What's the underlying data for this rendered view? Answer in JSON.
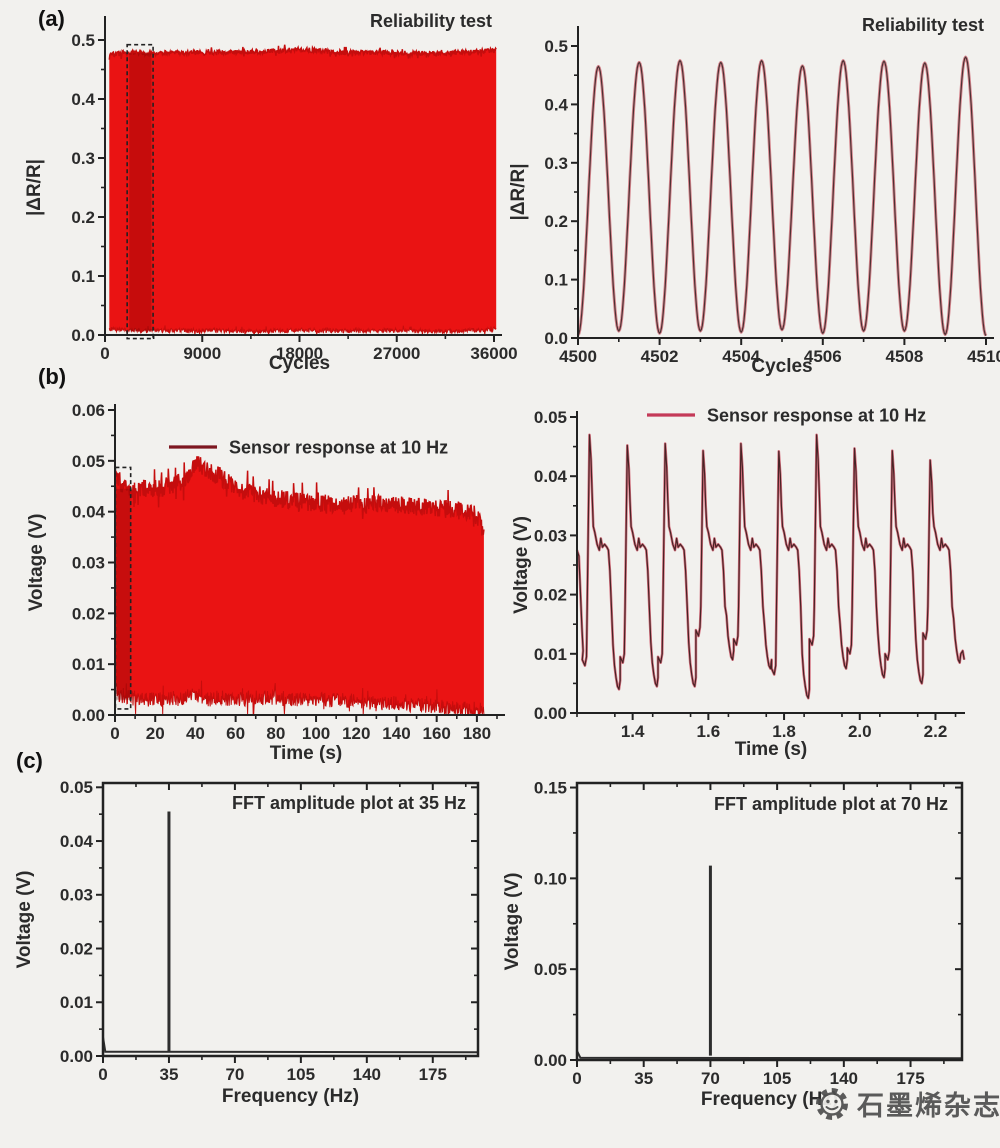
{
  "page": {
    "background": "#f2f1ee"
  },
  "panels": [
    {
      "label": "(a)"
    },
    {
      "label": "(b)"
    },
    {
      "label": "(c)"
    }
  ],
  "watermark": {
    "icon": "gear-logo-icon",
    "text": "石墨烯杂志"
  },
  "colors": {
    "band_fill": "#ea1313",
    "band_edge": "#c50d0d",
    "zoom_shade": "rgba(120,0,0,0.32)",
    "dashed_box": "#222222",
    "wave_outer": "#d5868e",
    "wave_inner": "#4d3133",
    "pulse_outer": "#d4707e",
    "pulse_inner": "#482325",
    "legend_dark_red": "#7d1620",
    "legend_crimson": "#c43a58",
    "fft_spike": "#2e2e2e",
    "axis": "#222222",
    "text": "#2b2b2b"
  },
  "chart_data": [
    {
      "id": "a-left",
      "panel": "a",
      "type": "area",
      "title": "Reliability test",
      "xlabel": "Cycles",
      "ylabel": "|ΔR/R|",
      "xlim": [
        0,
        36000
      ],
      "ylim": [
        0,
        0.5
      ],
      "xticks": {
        "pos": [
          0,
          9000,
          18000,
          27000,
          36000
        ],
        "labels": [
          "0",
          "9000",
          "18000",
          "27000",
          "36000"
        ],
        "minor": 4500
      },
      "yticks": {
        "pos": [
          0,
          0.1,
          0.2,
          0.3,
          0.4,
          0.5
        ],
        "labels": [
          "0.0",
          "0.1",
          "0.2",
          "0.3",
          "0.4",
          "0.5"
        ],
        "minor": 0.05
      },
      "box": false,
      "grid": false,
      "series": {
        "kind": "band",
        "color": "#ea1313",
        "edge": "#c50d0d",
        "n": 750,
        "seed": 7,
        "jitter_top": 0.004,
        "jitter_bottom": 0.0038,
        "envelope": [
          [
            400,
            0.475,
            0.01
          ],
          [
            2000,
            0.478,
            0.007
          ],
          [
            9000,
            0.478,
            0.008
          ],
          [
            14000,
            0.48,
            0.006
          ],
          [
            18000,
            0.484,
            0.008
          ],
          [
            22000,
            0.479,
            0.007
          ],
          [
            27000,
            0.478,
            0.008
          ],
          [
            31000,
            0.477,
            0.006
          ],
          [
            34000,
            0.48,
            0.008
          ],
          [
            36200,
            0.483,
            0.01
          ]
        ]
      },
      "annotations": [
        {
          "type": "shade",
          "x": [
            2250,
            4300
          ],
          "y": [
            0.006,
            0.4775
          ],
          "color": "rgba(120,0,0,0.32)"
        },
        {
          "type": "dashed-box",
          "x": [
            2050,
            4450
          ],
          "y": [
            -0.006,
            0.492
          ],
          "color": "#222222"
        }
      ]
    },
    {
      "id": "a-right",
      "panel": "a",
      "type": "line",
      "title": "Reliability test",
      "xlabel": "Cycles",
      "ylabel": "|ΔR/R|",
      "xlim": [
        4500,
        4510
      ],
      "ylim": [
        0,
        0.5
      ],
      "xticks": {
        "pos": [
          4500,
          4502,
          4504,
          4506,
          4508,
          4510
        ],
        "labels": [
          "4500",
          "4502",
          "4504",
          "4506",
          "4508",
          "4510"
        ],
        "minor": 1
      },
      "yticks": {
        "pos": [
          0,
          0.1,
          0.2,
          0.3,
          0.4,
          0.5
        ],
        "labels": [
          "0.0",
          "0.1",
          "0.2",
          "0.3",
          "0.4",
          "0.5"
        ],
        "minor": 0.05
      },
      "box": false,
      "grid": false,
      "series": {
        "kind": "cycles",
        "outer": "#d5868e",
        "inner": "#4d3133",
        "x0": 4500,
        "period": 1,
        "peaks": [
          0.465,
          0.472,
          0.475,
          0.472,
          0.475,
          0.466,
          0.475,
          0.474,
          0.471,
          0.481
        ],
        "valleys": [
          0.005,
          0.012,
          0.008,
          0.012,
          0.01,
          0.014,
          0.008,
          0.012,
          0.012,
          0.006
        ],
        "last_valley": 0.004
      },
      "annotations": []
    },
    {
      "id": "b-left",
      "panel": "b",
      "type": "area",
      "legend": {
        "label": "Sensor response at 10 Hz",
        "color": "#7d1620"
      },
      "xlabel": "Time (s)",
      "ylabel": "Voltage (V)",
      "xlim": [
        0,
        190
      ],
      "ylim": [
        0,
        0.06
      ],
      "xticks": {
        "pos": [
          0,
          20,
          40,
          60,
          80,
          100,
          120,
          140,
          160,
          180
        ],
        "labels": [
          "0",
          "20",
          "40",
          "60",
          "80",
          "100",
          "120",
          "140",
          "160",
          "180"
        ],
        "minor": 10
      },
      "yticks": {
        "pos": [
          0,
          0.01,
          0.02,
          0.03,
          0.04,
          0.05,
          0.06
        ],
        "labels": [
          "0.00",
          "0.01",
          "0.02",
          "0.03",
          "0.04",
          "0.05",
          "0.06"
        ],
        "minor": 0.005
      },
      "box": false,
      "grid": false,
      "series": {
        "kind": "band",
        "color": "#ea1313",
        "edge": "#c50d0d",
        "n": 720,
        "seed": 11,
        "jitter_top": 0.0018,
        "jitter_bottom": 0.0015,
        "envelope": [
          [
            0.3,
            0.048,
            0.006
          ],
          [
            1.5,
            0.0465,
            0.004
          ],
          [
            5,
            0.0445,
            0.0035
          ],
          [
            20,
            0.0445,
            0.003
          ],
          [
            35,
            0.046,
            0.0035
          ],
          [
            40,
            0.05,
            0.004
          ],
          [
            45,
            0.048,
            0.003
          ],
          [
            52,
            0.047,
            0.0035
          ],
          [
            60,
            0.0445,
            0.003
          ],
          [
            75,
            0.043,
            0.0035
          ],
          [
            90,
            0.042,
            0.003
          ],
          [
            110,
            0.0415,
            0.003
          ],
          [
            130,
            0.0415,
            0.0025
          ],
          [
            150,
            0.041,
            0.002
          ],
          [
            165,
            0.0405,
            0.0015
          ],
          [
            178,
            0.04,
            0.001
          ],
          [
            183.5,
            0.037,
            0.001
          ]
        ]
      },
      "annotations": [
        {
          "type": "shade",
          "x": [
            0.6,
            7.6
          ],
          "y": [
            0.003,
            0.0445
          ],
          "color": "rgba(120,0,0,0.30)"
        },
        {
          "type": "dashed-box",
          "x": [
            0.2,
            7.8
          ],
          "y": [
            0.0012,
            0.0487
          ],
          "color": "#222222"
        }
      ]
    },
    {
      "id": "b-right",
      "panel": "b",
      "type": "line",
      "legend": {
        "label": "Sensor response at 10 Hz",
        "color": "#c43a58"
      },
      "xlabel": "Time (s)",
      "ylabel": "Voltage (V)",
      "xlim": [
        1.253,
        2.278
      ],
      "ylim": [
        0,
        0.05
      ],
      "xticks": {
        "pos": [
          1.4,
          1.6,
          1.8,
          2.0,
          2.2
        ],
        "labels": [
          "1.4",
          "1.6",
          "1.8",
          "2.0",
          "2.2"
        ],
        "minor": 0.1
      },
      "yticks": {
        "pos": [
          0,
          0.01,
          0.02,
          0.03,
          0.04,
          0.05
        ],
        "labels": [
          "0.00",
          "0.01",
          "0.02",
          "0.03",
          "0.04",
          "0.05"
        ],
        "minor": 0.005
      },
      "box": false,
      "grid": false,
      "series": {
        "kind": "pulses",
        "outer": "#d4707e",
        "inner": "#482325",
        "pre": [
          [
            1.253,
            0.0275
          ],
          [
            1.258,
            0.0265
          ],
          [
            1.262,
            0.0205
          ],
          [
            1.266,
            0.0145
          ],
          [
            1.269,
            0.0105
          ]
        ],
        "post": [
          [
            2.272,
            0.0105
          ],
          [
            2.276,
            0.009
          ]
        ],
        "rise0": 1.28,
        "period": 0.1,
        "peaks": [
          0.047,
          0.0452,
          0.0455,
          0.0443,
          0.0455,
          0.0442,
          0.047,
          0.0447,
          0.0443,
          0.0427
        ],
        "lows": [
          0.0045,
          0.005,
          0.005,
          0.0095,
          0.008,
          0.003,
          0.008,
          0.0065,
          0.0055,
          0.009
        ],
        "template": [
          [
            -0.013,
            0.0105
          ],
          [
            -0.006,
            0.0095
          ],
          [
            -0.002,
            0.011
          ],
          [
            0.0,
            0.018
          ],
          [
            0.006,
            0.0455
          ],
          [
            0.01,
            0.0415
          ],
          [
            0.013,
            0.036
          ],
          [
            0.016,
            0.0315
          ],
          [
            0.02,
            0.0305
          ],
          [
            0.026,
            0.0285
          ],
          [
            0.032,
            0.0275
          ],
          [
            0.036,
            0.0295
          ],
          [
            0.04,
            0.028
          ],
          [
            0.046,
            0.0285
          ],
          [
            0.052,
            0.028
          ],
          [
            0.056,
            0.0275
          ],
          [
            0.06,
            0.024
          ],
          [
            0.064,
            0.018
          ],
          [
            0.068,
            0.013
          ],
          [
            0.072,
            0.0095
          ],
          [
            0.076,
            0.0075
          ],
          [
            0.08,
            0.006
          ],
          [
            0.084,
            0.0055
          ],
          [
            0.087,
            0.007
          ]
        ]
      },
      "annotations": []
    },
    {
      "id": "c-left",
      "panel": "c",
      "type": "spike",
      "title": "FFT amplitude plot at 35 Hz",
      "xlabel": "Frequency (Hz)",
      "ylabel": "Voltage (V)",
      "xlim": [
        0,
        199
      ],
      "ylim": [
        0,
        0.0508
      ],
      "xticks": {
        "pos": [
          0,
          35,
          70,
          105,
          140,
          175
        ],
        "labels": [
          "0",
          "35",
          "70",
          "105",
          "140",
          "175"
        ],
        "minor": 17.5
      },
      "yticks": {
        "pos": [
          0,
          0.01,
          0.02,
          0.03,
          0.04,
          0.05
        ],
        "labels": [
          "0.00",
          "0.01",
          "0.02",
          "0.03",
          "0.04",
          "0.05"
        ],
        "minor": 0.005
      },
      "box": true,
      "grid": false,
      "series": {
        "kind": "fft",
        "color": "#2e2e2e",
        "baseline": [
          [
            0,
            0.0035
          ],
          [
            1.2,
            0.0008
          ],
          [
            199,
            0.0007
          ]
        ],
        "spike": {
          "freq": 35,
          "amplitude": 0.0455
        }
      },
      "annotations": []
    },
    {
      "id": "c-right",
      "panel": "c",
      "type": "spike",
      "title": "FFT amplitude plot at 70 Hz",
      "xlabel": "Frequency (Hz)",
      "ylabel": "Voltage (V)",
      "xlim": [
        0,
        202
      ],
      "ylim": [
        0,
        0.1525
      ],
      "xticks": {
        "pos": [
          0,
          35,
          70,
          105,
          140,
          175
        ],
        "labels": [
          "0",
          "35",
          "70",
          "105",
          "140",
          "175"
        ],
        "minor": 17.5
      },
      "yticks": {
        "pos": [
          0,
          0.05,
          0.1,
          0.15
        ],
        "labels": [
          "0.00",
          "0.05",
          "0.10",
          "0.15"
        ],
        "minor": 0.025
      },
      "box": true,
      "grid": false,
      "series": {
        "kind": "fft",
        "color": "#2e2e2e",
        "baseline": [
          [
            0,
            0.005
          ],
          [
            1.8,
            0.0012
          ],
          [
            202,
            0.001
          ]
        ],
        "spike": {
          "freq": 70,
          "amplitude": 0.107
        }
      },
      "annotations": []
    }
  ]
}
